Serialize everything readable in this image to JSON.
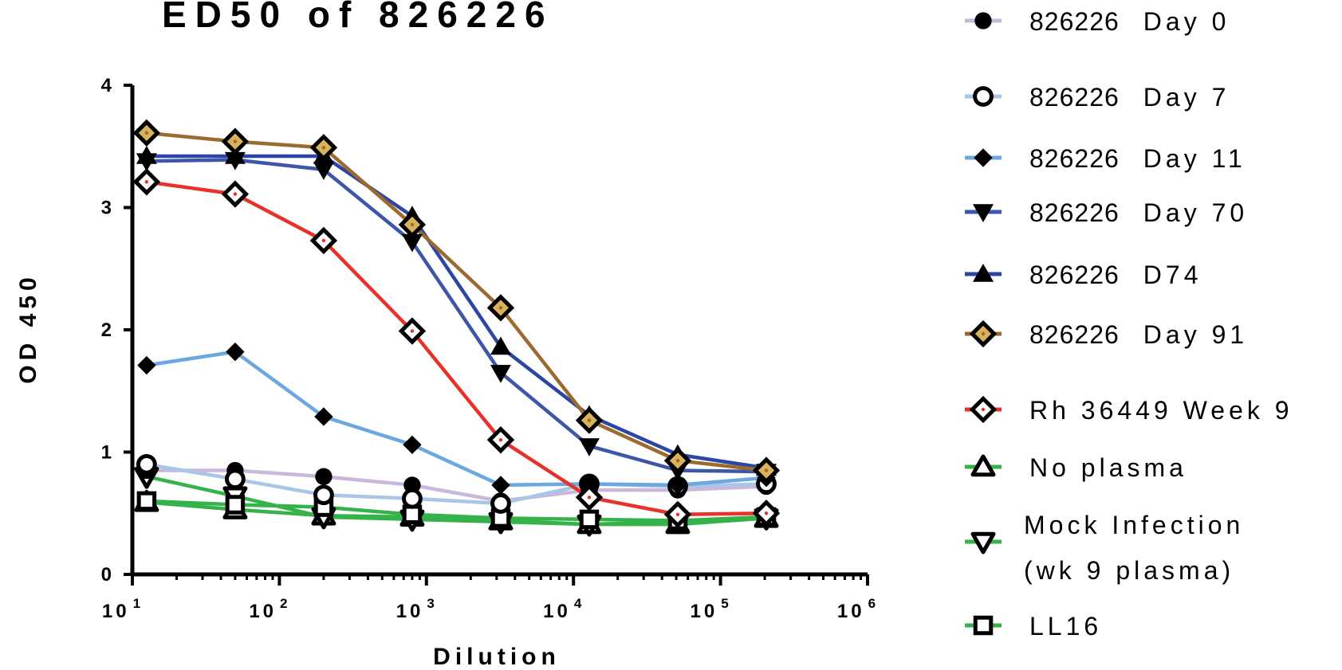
{
  "chart_data": {
    "type": "line",
    "title": "ED50 of 826226",
    "xlabel": "Dilution",
    "ylabel": "OD 450",
    "x_scale": "log",
    "xlim": [
      10,
      1000000
    ],
    "ylim": [
      0,
      4
    ],
    "yticks": [
      "0",
      "1",
      "2",
      "3",
      "4"
    ],
    "xticks": [
      "10",
      "10",
      "10",
      "10",
      "10",
      "10"
    ],
    "xtick_exponents": [
      "1",
      "2",
      "3",
      "4",
      "5",
      "6"
    ],
    "grid": false,
    "legend_position": "right",
    "x": [
      12.5,
      50,
      200,
      800,
      3200,
      12800,
      51200,
      204800
    ],
    "series": [
      {
        "name": "826226 Day 0",
        "color": "#c9b8dc",
        "marker": "circle-filled",
        "values": [
          0.85,
          0.85,
          0.8,
          0.73,
          0.6,
          0.69,
          0.69,
          0.72
        ]
      },
      {
        "name": "826226 Day 7",
        "color": "#a9c6e8",
        "marker": "circle-open",
        "values": [
          0.9,
          0.78,
          0.65,
          0.62,
          0.58,
          0.74,
          0.72,
          0.74
        ]
      },
      {
        "name": "826226 Day 11",
        "color": "#6aa8df",
        "marker": "diamond-filled",
        "values": [
          1.71,
          1.82,
          1.29,
          1.06,
          0.73,
          0.74,
          0.73,
          0.79
        ]
      },
      {
        "name": "826226 Day 70",
        "color": "#3e56a8",
        "marker": "triangle-down",
        "values": [
          3.38,
          3.39,
          3.31,
          2.72,
          1.65,
          1.05,
          0.85,
          0.84
        ]
      },
      {
        "name": "826226 D74",
        "color": "#2c46a4",
        "marker": "triangle-up",
        "values": [
          3.42,
          3.42,
          3.42,
          2.93,
          1.86,
          1.3,
          0.98,
          0.87
        ]
      },
      {
        "name": "826226 Day 91",
        "color": "#9b6a2e",
        "marker": "diamond-open",
        "values": [
          3.61,
          3.54,
          3.49,
          2.86,
          2.18,
          1.26,
          0.93,
          0.85
        ]
      },
      {
        "name": "Rh 36449 Week 9",
        "color": "#e8312a",
        "marker": "diamond-open-red",
        "values": [
          3.21,
          3.11,
          2.73,
          1.99,
          1.1,
          0.63,
          0.49,
          0.5
        ]
      },
      {
        "name": "No plasma",
        "color": "#35b34a",
        "marker": "triangle-up-open",
        "values": [
          0.59,
          0.53,
          0.48,
          0.47,
          0.44,
          0.41,
          0.41,
          0.46
        ]
      },
      {
        "name": "Mock Infection (wk 9 plasma)",
        "color": "#35b34a",
        "marker": "triangle-down-open",
        "values": [
          0.8,
          0.64,
          0.47,
          0.45,
          0.43,
          0.41,
          0.43,
          0.46
        ]
      },
      {
        "name": "LL16",
        "color": "#35b34a",
        "marker": "square-open",
        "values": [
          0.6,
          0.57,
          0.55,
          0.49,
          0.46,
          0.45,
          0.44,
          0.47
        ]
      }
    ],
    "legend_labels": [
      {
        "parts": [
          "826226",
          "Day 0"
        ]
      },
      {
        "parts": [
          "826226",
          "Day 7"
        ]
      },
      {
        "parts": [
          "826226",
          "Day 11"
        ]
      },
      {
        "parts": [
          "826226",
          "Day 70"
        ]
      },
      {
        "parts": [
          "826226",
          "D74"
        ]
      },
      {
        "parts": [
          "826226",
          "Day 91"
        ]
      },
      {
        "parts": [
          "Rh 36449 Week 9"
        ]
      },
      {
        "parts": [
          "No plasma"
        ]
      },
      {
        "parts": [
          "Mock Infection",
          "(wk 9 plasma)"
        ]
      },
      {
        "parts": [
          "LL16"
        ]
      }
    ]
  }
}
